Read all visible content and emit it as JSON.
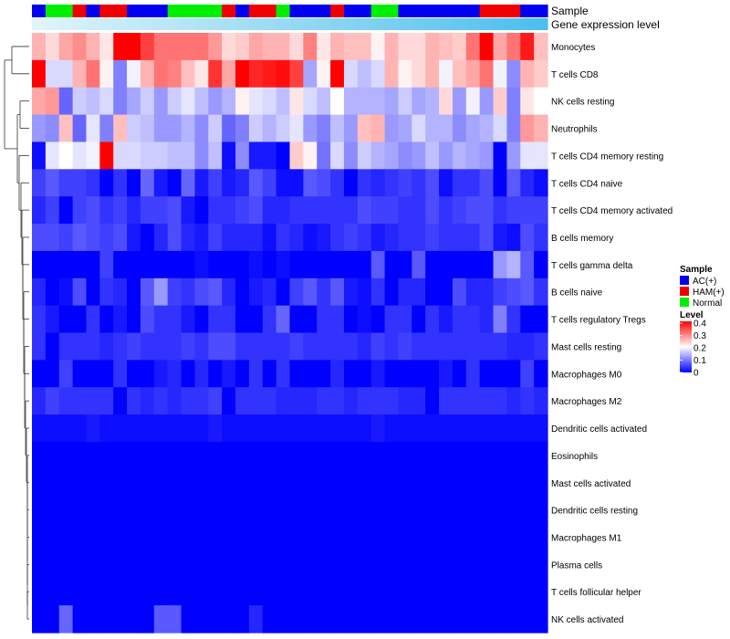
{
  "chart_data": {
    "type": "heatmap",
    "title": "",
    "annotation_labels": [
      "Sample",
      "Gene expression level"
    ],
    "rows": [
      "Monocytes",
      "T cells CD8",
      "NK cells resting",
      "Neutrophils",
      "T cells CD4 memory resting",
      "T cells CD4 naive",
      "T cells CD4 memory activated",
      "B cells memory",
      "T cells gamma delta",
      "B cells naive",
      "T cells regulatory  Tregs",
      "Mast cells resting",
      "Macrophages M0",
      "Macrophages M2",
      "Dendritic cells activated",
      "Eosinophils",
      "Mast cells activated",
      "Dendritic cells resting",
      "Macrophages M1",
      "Plasma cells",
      "T cells follicular helper",
      "NK cells activated"
    ],
    "sample_groups": [
      "A",
      "N",
      "N",
      "H",
      "A",
      "H",
      "H",
      "A",
      "A",
      "A",
      "N",
      "N",
      "N",
      "N",
      "H",
      "A",
      "H",
      "H",
      "N",
      "A",
      "A",
      "A",
      "H",
      "A",
      "A",
      "N",
      "N",
      "A",
      "A",
      "A",
      "A",
      "A",
      "A",
      "H",
      "H",
      "H",
      "A",
      "A"
    ],
    "expression_level": [
      0.62,
      0.64,
      0.66,
      0.68,
      0.7,
      0.72,
      0.74,
      0.76,
      0.78,
      0.8,
      0.82,
      0.84,
      0.86,
      0.88,
      0.9,
      0.92,
      0.94,
      0.96,
      0.98,
      1.0,
      1.02,
      1.04,
      1.06,
      1.08,
      1.1,
      1.12,
      1.14,
      1.16,
      1.18,
      1.2,
      1.22,
      1.24,
      1.26,
      1.28,
      1.3,
      1.32,
      1.34,
      1.36
    ],
    "values": [
      [
        0.26,
        0.23,
        0.27,
        0.29,
        0.26,
        0.22,
        0.4,
        0.41,
        0.35,
        0.31,
        0.31,
        0.31,
        0.31,
        0.28,
        0.23,
        0.24,
        0.27,
        0.26,
        0.26,
        0.23,
        0.3,
        0.22,
        0.26,
        0.25,
        0.25,
        0.21,
        0.26,
        0.23,
        0.23,
        0.26,
        0.25,
        0.24,
        0.31,
        0.4,
        0.27,
        0.31,
        0.38,
        0.25
      ],
      [
        0.4,
        0.17,
        0.17,
        0.26,
        0.31,
        0.21,
        0.1,
        0.19,
        0.26,
        0.31,
        0.3,
        0.25,
        0.22,
        0.36,
        0.27,
        0.4,
        0.37,
        0.38,
        0.39,
        0.35,
        0.13,
        0.21,
        0.42,
        0.17,
        0.15,
        0.17,
        0.26,
        0.21,
        0.23,
        0.26,
        0.19,
        0.25,
        0.27,
        0.31,
        0.19,
        0.11,
        0.26,
        0.24
      ],
      [
        0.27,
        0.28,
        0.08,
        0.16,
        0.15,
        0.17,
        0.1,
        0.13,
        0.16,
        0.12,
        0.16,
        0.18,
        0.15,
        0.12,
        0.14,
        0.21,
        0.18,
        0.17,
        0.15,
        0.22,
        0.17,
        0.15,
        0.2,
        0.14,
        0.14,
        0.14,
        0.13,
        0.16,
        0.13,
        0.14,
        0.23,
        0.12,
        0.19,
        0.12,
        0.24,
        0.1,
        0.22,
        0.2
      ],
      [
        0.12,
        0.11,
        0.25,
        0.08,
        0.18,
        0.1,
        0.25,
        0.16,
        0.15,
        0.12,
        0.12,
        0.14,
        0.11,
        0.16,
        0.08,
        0.1,
        0.16,
        0.14,
        0.16,
        0.18,
        0.12,
        0.1,
        0.15,
        0.12,
        0.25,
        0.26,
        0.12,
        0.13,
        0.17,
        0.14,
        0.14,
        0.11,
        0.13,
        0.14,
        0.17,
        0.1,
        0.28,
        0.26
      ],
      [
        0.01,
        0.18,
        0.2,
        0.18,
        0.19,
        0.42,
        0.17,
        0.17,
        0.16,
        0.16,
        0.15,
        0.15,
        0.11,
        0.15,
        0.01,
        0.11,
        0.02,
        0.02,
        0.0,
        0.24,
        0.21,
        0.09,
        0.17,
        0.11,
        0.16,
        0.14,
        0.13,
        0.11,
        0.12,
        0.15,
        0.12,
        0.14,
        0.13,
        0.12,
        0.0,
        0.12,
        0.18,
        0.18
      ],
      [
        0.05,
        0.07,
        0.05,
        0.05,
        0.04,
        0.0,
        0.04,
        0.0,
        0.08,
        0.02,
        0.0,
        0.08,
        0.02,
        0.05,
        0.02,
        0.03,
        0.07,
        0.05,
        0.01,
        0.01,
        0.07,
        0.06,
        0.04,
        0.0,
        0.04,
        0.03,
        0.04,
        0.05,
        0.04,
        0.06,
        0.01,
        0.04,
        0.04,
        0.06,
        0.0,
        0.07,
        0.03,
        0.01
      ],
      [
        0.03,
        0.05,
        0.0,
        0.05,
        0.06,
        0.04,
        0.05,
        0.03,
        0.05,
        0.05,
        0.06,
        0.02,
        0.0,
        0.04,
        0.04,
        0.05,
        0.06,
        0.03,
        0.03,
        0.04,
        0.04,
        0.04,
        0.04,
        0.04,
        0.06,
        0.05,
        0.05,
        0.04,
        0.04,
        0.06,
        0.04,
        0.05,
        0.06,
        0.06,
        0.04,
        0.05,
        0.05,
        0.05
      ],
      [
        0.06,
        0.06,
        0.05,
        0.07,
        0.06,
        0.05,
        0.06,
        0.02,
        0.0,
        0.03,
        0.06,
        0.03,
        0.02,
        0.05,
        0.03,
        0.03,
        0.03,
        0.01,
        0.04,
        0.03,
        0.01,
        0.02,
        0.04,
        0.05,
        0.04,
        0.02,
        0.03,
        0.04,
        0.04,
        0.05,
        0.04,
        0.04,
        0.04,
        0.06,
        0.02,
        0.01,
        0.06,
        0.04
      ],
      [
        0.0,
        0.0,
        0.0,
        0.0,
        0.0,
        0.05,
        0.0,
        0.0,
        0.0,
        0.0,
        0.0,
        0.0,
        0.01,
        0.0,
        0.0,
        0.0,
        0.01,
        0.0,
        0.01,
        0.0,
        0.0,
        0.0,
        0.0,
        0.0,
        0.0,
        0.07,
        0.0,
        0.0,
        0.07,
        0.0,
        0.0,
        0.0,
        0.0,
        0.0,
        0.12,
        0.14,
        0.07,
        0.0
      ],
      [
        0.03,
        0.0,
        0.01,
        0.06,
        0.0,
        0.04,
        0.03,
        0.0,
        0.07,
        0.12,
        0.05,
        0.04,
        0.06,
        0.07,
        0.03,
        0.0,
        0.02,
        0.03,
        0.0,
        0.05,
        0.07,
        0.04,
        0.07,
        0.02,
        0.01,
        0.04,
        0.0,
        0.03,
        0.03,
        0.0,
        0.0,
        0.06,
        0.03,
        0.03,
        0.05,
        0.06,
        0.07,
        0.04
      ],
      [
        0.04,
        0.02,
        0.0,
        0.0,
        0.04,
        0.0,
        0.02,
        0.0,
        0.06,
        0.04,
        0.04,
        0.02,
        0.0,
        0.04,
        0.04,
        0.0,
        0.0,
        0.04,
        0.08,
        0.0,
        0.0,
        0.04,
        0.04,
        0.0,
        0.01,
        0.0,
        0.04,
        0.04,
        0.0,
        0.04,
        0.02,
        0.04,
        0.04,
        0.03,
        0.1,
        0.04,
        0.0,
        0.0
      ],
      [
        0.04,
        0.0,
        0.04,
        0.04,
        0.04,
        0.03,
        0.04,
        0.05,
        0.04,
        0.04,
        0.04,
        0.05,
        0.04,
        0.06,
        0.06,
        0.04,
        0.04,
        0.04,
        0.04,
        0.05,
        0.04,
        0.04,
        0.04,
        0.04,
        0.03,
        0.05,
        0.04,
        0.05,
        0.04,
        0.04,
        0.04,
        0.04,
        0.04,
        0.04,
        0.04,
        0.03,
        0.03,
        0.04
      ],
      [
        0.0,
        0.0,
        0.05,
        0.0,
        0.0,
        0.0,
        0.04,
        0.0,
        0.0,
        0.02,
        0.03,
        0.0,
        0.03,
        0.0,
        0.02,
        0.0,
        0.04,
        0.0,
        0.04,
        0.0,
        0.0,
        0.0,
        0.03,
        0.0,
        0.0,
        0.02,
        0.0,
        0.0,
        0.0,
        0.0,
        0.02,
        0.0,
        0.04,
        0.0,
        0.0,
        0.0,
        0.05,
        0.0
      ],
      [
        0.03,
        0.05,
        0.04,
        0.04,
        0.04,
        0.04,
        0.0,
        0.04,
        0.03,
        0.04,
        0.03,
        0.04,
        0.04,
        0.05,
        0.0,
        0.04,
        0.04,
        0.04,
        0.03,
        0.03,
        0.03,
        0.04,
        0.04,
        0.03,
        0.04,
        0.04,
        0.04,
        0.03,
        0.03,
        0.0,
        0.04,
        0.04,
        0.04,
        0.04,
        0.04,
        0.03,
        0.04,
        0.03
      ],
      [
        0.01,
        0.01,
        0.01,
        0.01,
        0.02,
        0.01,
        0.01,
        0.01,
        0.01,
        0.01,
        0.01,
        0.01,
        0.01,
        0.02,
        0.01,
        0.01,
        0.01,
        0.01,
        0.01,
        0.01,
        0.01,
        0.01,
        0.01,
        0.01,
        0.01,
        0.02,
        0.01,
        0.01,
        0.01,
        0.01,
        0.01,
        0.01,
        0.01,
        0.01,
        0.01,
        0.01,
        0.01,
        0.01
      ],
      [
        0.0,
        0.0,
        0.0,
        0.0,
        0.0,
        0.0,
        0.0,
        0.0,
        0.0,
        0.0,
        0.0,
        0.0,
        0.0,
        0.0,
        0.0,
        0.0,
        0.0,
        0.0,
        0.0,
        0.0,
        0.0,
        0.0,
        0.0,
        0.0,
        0.0,
        0.0,
        0.0,
        0.0,
        0.0,
        0.0,
        0.0,
        0.0,
        0.0,
        0.0,
        0.0,
        0.0,
        0.0,
        0.0
      ],
      [
        0.0,
        0.0,
        0.0,
        0.0,
        0.0,
        0.0,
        0.0,
        0.0,
        0.0,
        0.0,
        0.0,
        0.0,
        0.0,
        0.0,
        0.0,
        0.0,
        0.0,
        0.0,
        0.0,
        0.0,
        0.0,
        0.0,
        0.0,
        0.0,
        0.0,
        0.0,
        0.0,
        0.0,
        0.0,
        0.0,
        0.0,
        0.0,
        0.0,
        0.0,
        0.0,
        0.0,
        0.0,
        0.0
      ],
      [
        0.0,
        0.0,
        0.0,
        0.0,
        0.0,
        0.0,
        0.0,
        0.0,
        0.0,
        0.0,
        0.0,
        0.0,
        0.0,
        0.0,
        0.0,
        0.0,
        0.0,
        0.0,
        0.0,
        0.0,
        0.0,
        0.0,
        0.0,
        0.0,
        0.0,
        0.0,
        0.0,
        0.0,
        0.0,
        0.0,
        0.0,
        0.0,
        0.0,
        0.0,
        0.0,
        0.0,
        0.0,
        0.0
      ],
      [
        0.0,
        0.0,
        0.0,
        0.0,
        0.0,
        0.0,
        0.0,
        0.0,
        0.0,
        0.0,
        0.0,
        0.0,
        0.0,
        0.0,
        0.0,
        0.0,
        0.0,
        0.0,
        0.0,
        0.0,
        0.0,
        0.0,
        0.0,
        0.0,
        0.0,
        0.0,
        0.0,
        0.0,
        0.0,
        0.0,
        0.0,
        0.0,
        0.0,
        0.0,
        0.0,
        0.0,
        0.0,
        0.0
      ],
      [
        0.0,
        0.0,
        0.0,
        0.0,
        0.0,
        0.0,
        0.0,
        0.0,
        0.0,
        0.0,
        0.0,
        0.0,
        0.0,
        0.0,
        0.0,
        0.0,
        0.0,
        0.0,
        0.0,
        0.0,
        0.0,
        0.0,
        0.0,
        0.0,
        0.0,
        0.0,
        0.0,
        0.0,
        0.0,
        0.0,
        0.0,
        0.0,
        0.0,
        0.0,
        0.0,
        0.0,
        0.0,
        0.0
      ],
      [
        0.0,
        0.0,
        0.0,
        0.0,
        0.0,
        0.0,
        0.0,
        0.0,
        0.0,
        0.0,
        0.0,
        0.0,
        0.0,
        0.0,
        0.0,
        0.0,
        0.0,
        0.0,
        0.0,
        0.0,
        0.0,
        0.0,
        0.0,
        0.0,
        0.0,
        0.0,
        0.0,
        0.0,
        0.0,
        0.0,
        0.0,
        0.0,
        0.0,
        0.0,
        0.0,
        0.0,
        0.0,
        0.0
      ],
      [
        0.0,
        0.0,
        0.08,
        0.0,
        0.0,
        0.0,
        0.0,
        0.0,
        0.0,
        0.07,
        0.07,
        0.0,
        0.0,
        0.0,
        0.0,
        0.0,
        0.03,
        0.0,
        0.0,
        0.0,
        0.0,
        0.0,
        0.0,
        0.0,
        0.0,
        0.0,
        0.0,
        0.0,
        0.0,
        0.0,
        0.0,
        0.0,
        0.0,
        0.0,
        0.0,
        0.0,
        0.0,
        0.0
      ]
    ],
    "color_scale": {
      "min": 0,
      "max": 0.4,
      "low": "#0000ff",
      "mid": "#ffffff",
      "high": "#ff0000"
    },
    "legend": {
      "sample_title": "Sample",
      "sample_entries": [
        {
          "key": "A",
          "label": "AC(+)",
          "color": "#0000ee"
        },
        {
          "key": "H",
          "label": "HAM(+)",
          "color": "#ee0000"
        },
        {
          "key": "N",
          "label": "Normal",
          "color": "#00ee00"
        }
      ],
      "level_title": "Level",
      "level_ticks": [
        0.4,
        0.3,
        0.2,
        0.1,
        0
      ],
      "placement": "right"
    },
    "expression_colors": {
      "low": "#dff4fb",
      "high": "#4dbfee"
    },
    "dendrogram": "row-clustering"
  }
}
